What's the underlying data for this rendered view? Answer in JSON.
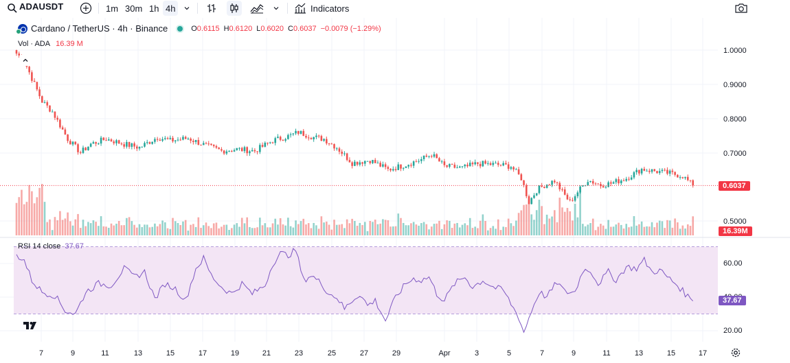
{
  "toolbar": {
    "symbol": "ADAUSDT",
    "intervals": [
      "1m",
      "30m",
      "1h",
      "4h"
    ],
    "active_interval": "4h",
    "indicators_label": "Indicators"
  },
  "legend": {
    "title": "Cardano / TetherUS · 4h · Binance",
    "o_key": "O",
    "o_val": "0.6115",
    "h_key": "H",
    "h_val": "0.6120",
    "l_key": "L",
    "l_val": "0.6020",
    "c_key": "C",
    "c_val": "0.6037",
    "change": "−0.0079 (−1.29%)",
    "vol_label": "Vol · ADA",
    "vol_val": "16.39 M"
  },
  "rsi": {
    "label": "RSI 14 close",
    "value": "37.67",
    "current": 37.67
  },
  "price_axis": {
    "ticks": [
      "1.0000",
      "0.9000",
      "0.8000",
      "0.7000",
      "0.5000"
    ],
    "current_price": "0.6037",
    "current_volume": "16.39M"
  },
  "rsi_axis": {
    "ticks": [
      "60.00",
      "40.00",
      "20.00"
    ],
    "upper_band": 70,
    "lower_band": 30
  },
  "time_axis": {
    "labels": [
      "7",
      "9",
      "11",
      "13",
      "15",
      "17",
      "19",
      "21",
      "23",
      "25",
      "27",
      "29",
      "Apr",
      "3",
      "5",
      "7",
      "9",
      "11",
      "13",
      "15",
      "17"
    ]
  },
  "colors": {
    "up": "#26a69a",
    "down": "#ef5350",
    "rsi_line": "#7e57c2",
    "rsi_band": "#f3e5f5",
    "price_badge": "#f23645",
    "volume_badge": "#f23645",
    "rsi_badge": "#7e57c2"
  },
  "price_anchors": [
    [
      0,
      0.99
    ],
    [
      3,
      0.97
    ],
    [
      7,
      0.9
    ],
    [
      10,
      0.85
    ],
    [
      14,
      0.82
    ],
    [
      20,
      0.74
    ],
    [
      25,
      0.7
    ],
    [
      29,
      0.725
    ],
    [
      35,
      0.74
    ],
    [
      42,
      0.725
    ],
    [
      48,
      0.715
    ],
    [
      55,
      0.745
    ],
    [
      60,
      0.735
    ],
    [
      67,
      0.742
    ],
    [
      74,
      0.72
    ],
    [
      80,
      0.705
    ],
    [
      86,
      0.71
    ],
    [
      93,
      0.705
    ],
    [
      100,
      0.735
    ],
    [
      107,
      0.75
    ],
    [
      110,
      0.76
    ],
    [
      116,
      0.745
    ],
    [
      120,
      0.74
    ],
    [
      125,
      0.715
    ],
    [
      131,
      0.67
    ],
    [
      138,
      0.678
    ],
    [
      145,
      0.65
    ],
    [
      152,
      0.665
    ],
    [
      158,
      0.68
    ],
    [
      162,
      0.695
    ],
    [
      167,
      0.66
    ],
    [
      174,
      0.655
    ],
    [
      180,
      0.668
    ],
    [
      187,
      0.665
    ],
    [
      193,
      0.66
    ],
    [
      197,
      0.625
    ],
    [
      200,
      0.555
    ],
    [
      203,
      0.59
    ],
    [
      206,
      0.605
    ],
    [
      210,
      0.618
    ],
    [
      213,
      0.585
    ],
    [
      216,
      0.555
    ],
    [
      219,
      0.585
    ],
    [
      223,
      0.62
    ],
    [
      228,
      0.605
    ],
    [
      232,
      0.61
    ],
    [
      238,
      0.625
    ],
    [
      244,
      0.652
    ],
    [
      250,
      0.645
    ],
    [
      256,
      0.638
    ],
    [
      260,
      0.632
    ],
    [
      264,
      0.6037
    ]
  ],
  "rsi_anchors": [
    [
      0,
      65
    ],
    [
      3,
      62
    ],
    [
      6,
      50
    ],
    [
      10,
      43
    ],
    [
      15,
      41
    ],
    [
      19,
      32
    ],
    [
      23,
      30
    ],
    [
      27,
      43
    ],
    [
      32,
      48
    ],
    [
      37,
      47
    ],
    [
      42,
      57
    ],
    [
      46,
      52
    ],
    [
      50,
      55
    ],
    [
      54,
      39
    ],
    [
      58,
      48
    ],
    [
      62,
      45
    ],
    [
      66,
      38
    ],
    [
      70,
      57
    ],
    [
      73,
      63
    ],
    [
      76,
      53
    ],
    [
      80,
      46
    ],
    [
      84,
      42
    ],
    [
      88,
      48
    ],
    [
      92,
      42
    ],
    [
      97,
      47
    ],
    [
      100,
      60
    ],
    [
      103,
      66
    ],
    [
      106,
      65
    ],
    [
      109,
      68
    ],
    [
      112,
      50
    ],
    [
      115,
      53
    ],
    [
      119,
      48
    ],
    [
      122,
      42
    ],
    [
      125,
      40
    ],
    [
      128,
      33
    ],
    [
      131,
      38
    ],
    [
      134,
      42
    ],
    [
      137,
      35
    ],
    [
      140,
      38
    ],
    [
      144,
      26
    ],
    [
      148,
      40
    ],
    [
      152,
      48
    ],
    [
      155,
      51
    ],
    [
      158,
      50
    ],
    [
      161,
      52
    ],
    [
      164,
      42
    ],
    [
      167,
      38
    ],
    [
      171,
      48
    ],
    [
      175,
      52
    ],
    [
      178,
      46
    ],
    [
      182,
      50
    ],
    [
      186,
      46
    ],
    [
      190,
      44
    ],
    [
      193,
      36
    ],
    [
      196,
      28
    ],
    [
      198,
      19
    ],
    [
      201,
      32
    ],
    [
      204,
      43
    ],
    [
      207,
      40
    ],
    [
      211,
      49
    ],
    [
      214,
      43
    ],
    [
      218,
      43
    ],
    [
      221,
      56
    ],
    [
      224,
      56
    ],
    [
      227,
      48
    ],
    [
      231,
      55
    ],
    [
      234,
      50
    ],
    [
      238,
      58
    ],
    [
      242,
      57
    ],
    [
      245,
      62
    ],
    [
      248,
      55
    ],
    [
      251,
      56
    ],
    [
      254,
      52
    ],
    [
      258,
      47
    ],
    [
      261,
      42
    ],
    [
      264,
      37.67
    ]
  ]
}
